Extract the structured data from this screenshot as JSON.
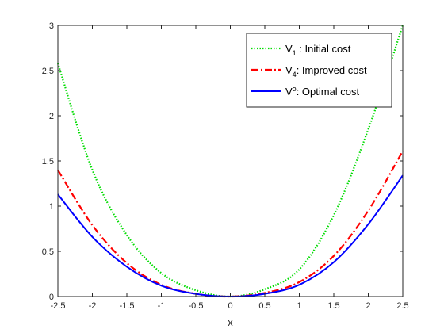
{
  "chart_data": {
    "type": "line",
    "title": "",
    "xlabel": "x",
    "ylabel": "",
    "xlim": [
      -2.5,
      2.5
    ],
    "ylim": [
      0,
      3
    ],
    "x_ticks": [
      -2.5,
      -2,
      -1.5,
      -1,
      -0.5,
      0,
      0.5,
      1,
      1.5,
      2,
      2.5
    ],
    "x_tick_labels": [
      "-2.5",
      "-2",
      "-1.5",
      "-1",
      "-0.5",
      "0",
      "0.5",
      "1",
      "1.5",
      "2",
      "2.5"
    ],
    "y_ticks": [
      0,
      0.5,
      1,
      1.5,
      2,
      2.5,
      3
    ],
    "y_tick_labels": [
      "0",
      "0.5",
      "1",
      "1.5",
      "2",
      "2.5",
      "3"
    ],
    "grid": false,
    "legend_position": "top-right",
    "x": [
      -2.5,
      -2.0,
      -1.5,
      -1.0,
      -0.5,
      0,
      0.5,
      1.0,
      1.5,
      2.0,
      2.5
    ],
    "series": [
      {
        "name": "V1 : Initial cost",
        "legend_main": "V",
        "legend_sub": "1",
        "legend_rest": " : Initial cost",
        "color": "#00dd00",
        "style": "dotted",
        "values": [
          2.58,
          1.4,
          0.68,
          0.26,
          0.07,
          0.0,
          0.08,
          0.3,
          0.9,
          1.85,
          3.0
        ]
      },
      {
        "name": "V4: Improved cost",
        "legend_main": "V",
        "legend_sub": "4",
        "legend_rest": ": Improved cost",
        "color": "#ff0000",
        "style": "dashdot",
        "values": [
          1.4,
          0.79,
          0.37,
          0.13,
          0.03,
          0.0,
          0.04,
          0.16,
          0.45,
          0.95,
          1.61
        ]
      },
      {
        "name": "Vo: Optimal cost",
        "legend_main": "V",
        "legend_sup": "o",
        "legend_rest": ": Optimal cost",
        "color": "#0000ff",
        "style": "solid",
        "values": [
          1.13,
          0.66,
          0.33,
          0.12,
          0.03,
          0.0,
          0.03,
          0.13,
          0.38,
          0.8,
          1.34
        ]
      }
    ]
  }
}
